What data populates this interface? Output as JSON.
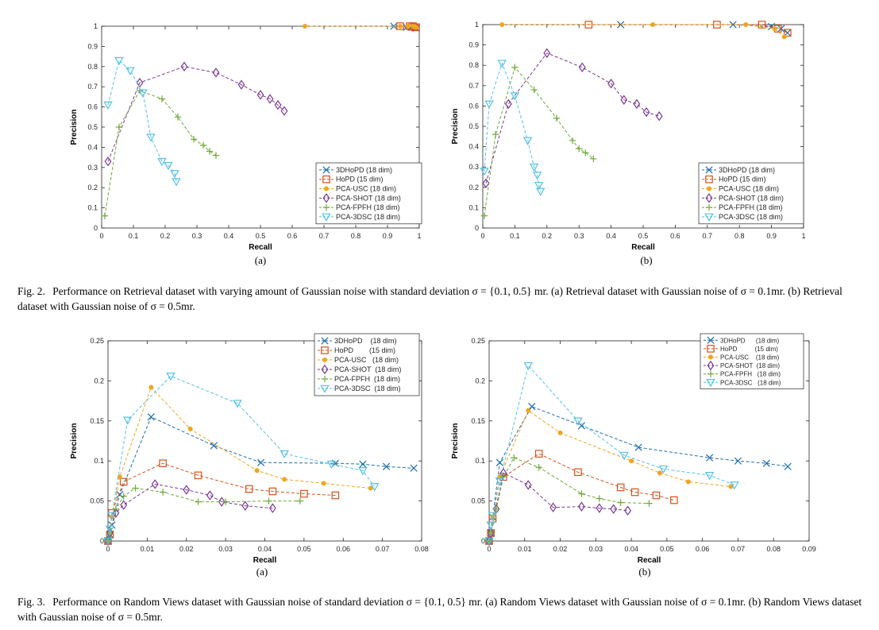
{
  "series_styles": [
    {
      "name": "3DHoPD",
      "color": "#1f6fad",
      "marker": "x"
    },
    {
      "name": "HoPD",
      "color": "#d4521b",
      "marker": "square"
    },
    {
      "name": "PCA-USC",
      "color": "#f0a51f",
      "marker": "dot"
    },
    {
      "name": "PCA-SHOT",
      "color": "#7a3a92",
      "marker": "diamond"
    },
    {
      "name": "PCA-FPFH",
      "color": "#6fa93a",
      "marker": "plus"
    },
    {
      "name": "PCA-3DSC",
      "color": "#55c2e6",
      "marker": "tri"
    }
  ],
  "captions": {
    "fig2_label": "Fig. 2.",
    "fig2_text": "Performance on Retrieval dataset with varying amount of Gaussian noise with standard deviation σ = {0.1, 0.5} mr. (a) Retrieval dataset with Gaussian noise of σ = 0.1mr. (b) Retrieval dataset with Gaussian noise of σ = 0.5mr.",
    "fig3_label": "Fig. 3.",
    "fig3_text": "Performance on Random Views dataset with Gaussian noise of standard deviation σ = {0.1, 0.5} mr. (a) Random Views dataset with Gaussian noise of σ = 0.1mr. (b) Random Views dataset with Gaussian noise of σ = 0.5mr."
  },
  "chart_data": [
    {
      "type": "line",
      "sublabel": "(a)",
      "xlabel": "Recall",
      "ylabel": "Precision",
      "xlim": [
        0,
        1
      ],
      "ylim": [
        0,
        1
      ],
      "xticks": [
        "0",
        "0.1",
        "0.2",
        "0.3",
        "0.4",
        "0.5",
        "0.6",
        "0.7",
        "0.8",
        "0.9",
        "1"
      ],
      "yticks": [
        "0",
        "0.1",
        "0.2",
        "0.3",
        "0.4",
        "0.5",
        "0.6",
        "0.7",
        "0.8",
        "0.9",
        "1"
      ],
      "xtick_values": [
        0,
        0.1,
        0.2,
        0.3,
        0.4,
        0.5,
        0.6,
        0.7,
        0.8,
        0.9,
        1
      ],
      "ytick_values": [
        0,
        0.1,
        0.2,
        0.3,
        0.4,
        0.5,
        0.6,
        0.7,
        0.8,
        0.9,
        1
      ],
      "legend_position": "bottom-right",
      "legend": [
        "3DHoPD (18 dim)",
        "HoPD (15 dim)",
        "PCA-USC (18 dim)",
        "PCA-SHOT (18 dim)",
        "PCA-FPFH (18 dim)",
        "PCA-3DSC (18 dim)"
      ],
      "series": [
        {
          "name": "3DHoPD (18 dim)",
          "x": [
            0.92,
            0.96,
            0.975,
            0.985,
            0.99
          ],
          "y": [
            1,
            0.995,
            0.995,
            0.995,
            0.99
          ]
        },
        {
          "name": "HoPD (15 dim)",
          "x": [
            0.94,
            0.97,
            0.98,
            0.985,
            0.99
          ],
          "y": [
            1,
            1,
            1,
            0.995,
            0.995
          ]
        },
        {
          "name": "PCA-USC (18 dim)",
          "x": [
            0.64,
            0.94,
            0.965,
            0.98,
            0.99
          ],
          "y": [
            1,
            1,
            1,
            1,
            0.995
          ]
        },
        {
          "name": "PCA-SHOT (18 dim)",
          "x": [
            0.02,
            0.12,
            0.26,
            0.36,
            0.44,
            0.5,
            0.53,
            0.555,
            0.575
          ],
          "y": [
            0.33,
            0.72,
            0.8,
            0.77,
            0.71,
            0.66,
            0.64,
            0.61,
            0.58
          ]
        },
        {
          "name": "PCA-FPFH (18 dim)",
          "x": [
            0.01,
            0.055,
            0.12,
            0.19,
            0.24,
            0.29,
            0.32,
            0.34,
            0.36
          ],
          "y": [
            0.06,
            0.5,
            0.68,
            0.64,
            0.55,
            0.44,
            0.41,
            0.38,
            0.36
          ]
        },
        {
          "name": "PCA-3DSC (18 dim)",
          "x": [
            0.02,
            0.055,
            0.09,
            0.13,
            0.155,
            0.19,
            0.21,
            0.23,
            0.235
          ],
          "y": [
            0.61,
            0.83,
            0.78,
            0.67,
            0.45,
            0.33,
            0.31,
            0.27,
            0.23
          ]
        }
      ]
    },
    {
      "type": "line",
      "sublabel": "(b)",
      "xlabel": "Recall",
      "ylabel": "Precision",
      "xlim": [
        0,
        1
      ],
      "ylim": [
        0,
        1
      ],
      "xticks": [
        "0",
        "0.1",
        "0.2",
        "0.3",
        "0.4",
        "0.5",
        "0.6",
        "0.7",
        "0.8",
        "0.9",
        "1"
      ],
      "yticks": [
        "0",
        "0.1",
        "0.2",
        "0.3",
        "0.4",
        "0.5",
        "0.6",
        "0.7",
        "0.8",
        "0.9",
        "1"
      ],
      "xtick_values": [
        0,
        0.1,
        0.2,
        0.3,
        0.4,
        0.5,
        0.6,
        0.7,
        0.8,
        0.9,
        1
      ],
      "ytick_values": [
        0,
        0.1,
        0.2,
        0.3,
        0.4,
        0.5,
        0.6,
        0.7,
        0.8,
        0.9,
        1
      ],
      "legend_position": "bottom-right",
      "legend": [
        "3DHoPD (18 dim)",
        "HoPD (15 dim)",
        "PCA-USC (18 dim)",
        "PCA-SHOT (18 dim)",
        "PCA-FPFH (18 dim)",
        "PCA-3DSC (18 dim)"
      ],
      "series": [
        {
          "name": "3DHoPD (18 dim)",
          "x": [
            0.43,
            0.78,
            0.9,
            0.93,
            0.95
          ],
          "y": [
            1,
            1,
            0.99,
            0.98,
            0.96
          ]
        },
        {
          "name": "HoPD (15 dim)",
          "x": [
            0.33,
            0.73,
            0.87,
            0.92,
            0.95
          ],
          "y": [
            1,
            1,
            1,
            0.98,
            0.96
          ]
        },
        {
          "name": "PCA-USC (18 dim)",
          "x": [
            0.06,
            0.53,
            0.82,
            0.91,
            0.94
          ],
          "y": [
            1,
            1,
            1,
            0.98,
            0.94
          ]
        },
        {
          "name": "PCA-SHOT (18 dim)",
          "x": [
            0.01,
            0.08,
            0.2,
            0.31,
            0.4,
            0.44,
            0.48,
            0.51,
            0.55
          ],
          "y": [
            0.22,
            0.61,
            0.86,
            0.79,
            0.71,
            0.63,
            0.61,
            0.57,
            0.55
          ]
        },
        {
          "name": "PCA-FPFH (18 dim)",
          "x": [
            0.005,
            0.04,
            0.1,
            0.16,
            0.23,
            0.28,
            0.3,
            0.32,
            0.345
          ],
          "y": [
            0.06,
            0.46,
            0.79,
            0.68,
            0.54,
            0.43,
            0.39,
            0.37,
            0.34
          ]
        },
        {
          "name": "PCA-3DSC (18 dim)",
          "x": [
            0.005,
            0.02,
            0.06,
            0.1,
            0.14,
            0.16,
            0.17,
            0.175,
            0.18
          ],
          "y": [
            0.28,
            0.61,
            0.81,
            0.65,
            0.43,
            0.3,
            0.26,
            0.21,
            0.18
          ]
        }
      ]
    },
    {
      "type": "line",
      "sublabel": "(a)",
      "xlabel": "Recall",
      "ylabel": "Precision",
      "xlim": [
        0,
        0.08
      ],
      "ylim": [
        0,
        0.25
      ],
      "xticks": [
        "0",
        "0.01",
        "0.02",
        "0.03",
        "0.04",
        "0.05",
        "0.06",
        "0.07",
        "0.08"
      ],
      "yticks": [
        "0",
        "0.05",
        "0.1",
        "0.15",
        "0.2",
        "0.25"
      ],
      "xtick_values": [
        0,
        0.01,
        0.02,
        0.03,
        0.04,
        0.05,
        0.06,
        0.07,
        0.08
      ],
      "ytick_values": [
        0,
        0.05,
        0.1,
        0.15,
        0.2,
        0.25
      ],
      "legend_position": "top-right",
      "legend": [
        "3DHoPD    (18 dim)",
        "HoPD        (15 dim)",
        "PCA-USC   (18 dim)",
        "PCA-SHOT  (18 dim)",
        "PCA-FPFH  (18 dim)",
        "PCA-3DSC  (18 dim)"
      ],
      "series": [
        {
          "name": "3DHoPD    (18 dim)",
          "x": [
            0,
            0.0005,
            0.001,
            0.003,
            0.011,
            0.027,
            0.039,
            0.058,
            0.065,
            0.071,
            0.078
          ],
          "y": [
            0,
            0.008,
            0.02,
            0.058,
            0.155,
            0.119,
            0.098,
            0.097,
            0.096,
            0.093,
            0.091
          ]
        },
        {
          "name": "HoPD        (15 dim)",
          "x": [
            0,
            0.0005,
            0.001,
            0.004,
            0.014,
            0.023,
            0.036,
            0.042,
            0.05,
            0.058
          ],
          "y": [
            0,
            0.008,
            0.035,
            0.074,
            0.097,
            0.082,
            0.065,
            0.062,
            0.059,
            0.057
          ]
        },
        {
          "name": "PCA-USC   (18 dim)",
          "x": [
            0,
            0.0005,
            0.001,
            0.003,
            0.011,
            0.021,
            0.038,
            0.045,
            0.055,
            0.067
          ],
          "y": [
            0,
            0.01,
            0.03,
            0.08,
            0.192,
            0.14,
            0.088,
            0.077,
            0.072,
            0.066
          ]
        },
        {
          "name": "PCA-SHOT  (18 dim)",
          "x": [
            0,
            0.0005,
            0.002,
            0.004,
            0.012,
            0.02,
            0.026,
            0.029,
            0.035,
            0.042
          ],
          "y": [
            0,
            0.01,
            0.035,
            0.045,
            0.071,
            0.064,
            0.057,
            0.049,
            0.044,
            0.041
          ]
        },
        {
          "name": "PCA-FPFH  (18 dim)",
          "x": [
            0,
            0.0005,
            0.002,
            0.004,
            0.007,
            0.014,
            0.023,
            0.03,
            0.041,
            0.049
          ],
          "y": [
            0,
            0.01,
            0.04,
            0.056,
            0.066,
            0.061,
            0.049,
            0.049,
            0.05,
            0.05
          ]
        },
        {
          "name": "PCA-3DSC  (18 dim)",
          "x": [
            0,
            0.0005,
            0.001,
            0.005,
            0.016,
            0.033,
            0.045,
            0.057,
            0.065,
            0.068
          ],
          "y": [
            0,
            0.015,
            0.032,
            0.151,
            0.206,
            0.172,
            0.109,
            0.096,
            0.088,
            0.068
          ]
        }
      ]
    },
    {
      "type": "line",
      "sublabel": "(b)",
      "xlabel": "Recall",
      "ylabel": "Precision",
      "xlim": [
        0,
        0.09
      ],
      "ylim": [
        0,
        0.25
      ],
      "xticks": [
        "0",
        "0.01",
        "0.02",
        "0.03",
        "0.04",
        "0.05",
        "0.06",
        "0.07",
        "0.08",
        "0.09"
      ],
      "yticks": [
        "0",
        "0.05",
        "0.1",
        "0.15",
        "0.2",
        "0.25"
      ],
      "xtick_values": [
        0,
        0.01,
        0.02,
        0.03,
        0.04,
        0.05,
        0.06,
        0.07,
        0.08,
        0.09
      ],
      "ytick_values": [
        0,
        0.05,
        0.1,
        0.15,
        0.2,
        0.25
      ],
      "legend_position": "top-right",
      "legend": [
        "3DHoPD      (18 dim)",
        "HoPD          (15 dim)",
        "PCA-USC    (18 dim)",
        "PCA-SHOT  (18 dim)",
        "PCA-FPFH   (18 dim)",
        "PCA-3DSC   (18 dim)"
      ],
      "series": [
        {
          "name": "3DHoPD      (18 dim)",
          "x": [
            0,
            0.0005,
            0.001,
            0.003,
            0.012,
            0.026,
            0.042,
            0.062,
            0.07,
            0.078,
            0.084
          ],
          "y": [
            0,
            0.01,
            0.03,
            0.098,
            0.168,
            0.144,
            0.117,
            0.104,
            0.1,
            0.097,
            0.093
          ]
        },
        {
          "name": "HoPD          (15 dim)",
          "x": [
            0,
            0.0005,
            0.001,
            0.004,
            0.014,
            0.025,
            0.037,
            0.041,
            0.047,
            0.052
          ],
          "y": [
            0,
            0.01,
            0.028,
            0.08,
            0.109,
            0.086,
            0.067,
            0.061,
            0.057,
            0.051
          ]
        },
        {
          "name": "PCA-USC    (18 dim)",
          "x": [
            0,
            0.0005,
            0.001,
            0.003,
            0.011,
            0.02,
            0.04,
            0.048,
            0.056,
            0.068
          ],
          "y": [
            0,
            0.01,
            0.03,
            0.08,
            0.163,
            0.135,
            0.1,
            0.085,
            0.074,
            0.068
          ]
        },
        {
          "name": "PCA-SHOT  (18 dim)",
          "x": [
            0,
            0.0005,
            0.002,
            0.004,
            0.011,
            0.018,
            0.026,
            0.031,
            0.035,
            0.039
          ],
          "y": [
            0,
            0.01,
            0.04,
            0.085,
            0.07,
            0.042,
            0.043,
            0.041,
            0.04,
            0.038
          ]
        },
        {
          "name": "PCA-FPFH   (18 dim)",
          "x": [
            0,
            0.0005,
            0.002,
            0.004,
            0.007,
            0.014,
            0.026,
            0.031,
            0.037,
            0.045
          ],
          "y": [
            0,
            0.01,
            0.04,
            0.08,
            0.104,
            0.092,
            0.059,
            0.053,
            0.048,
            0.047
          ]
        },
        {
          "name": "PCA-3DSC   (18 dim)",
          "x": [
            0,
            0.0005,
            0.001,
            0.003,
            0.011,
            0.025,
            0.038,
            0.049,
            0.062,
            0.069
          ],
          "y": [
            0,
            0.02,
            0.032,
            0.075,
            0.219,
            0.15,
            0.107,
            0.09,
            0.082,
            0.07
          ]
        }
      ]
    }
  ]
}
